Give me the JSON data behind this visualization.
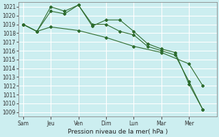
{
  "xlabel": "Pression niveau de la mer( hPa )",
  "bg_color": "#cceef0",
  "grid_color": "#ffffff",
  "line_color": "#2d6b2d",
  "ylim": [
    1008.5,
    1021.5
  ],
  "yticks": [
    1009,
    1010,
    1011,
    1012,
    1013,
    1014,
    1015,
    1016,
    1017,
    1018,
    1019,
    1020,
    1021
  ],
  "day_labels": [
    "Sam",
    "Jeu",
    "Ven",
    "Dim",
    "Lun",
    "Mar",
    "Mer"
  ],
  "day_positions": [
    0,
    24,
    48,
    72,
    96,
    120,
    144
  ],
  "xlim": [
    -4,
    168
  ],
  "series1_x": [
    0,
    12,
    24,
    36,
    48,
    60,
    72,
    84,
    96,
    108,
    120,
    132,
    144,
    156
  ],
  "series1_y": [
    1019.0,
    1018.2,
    1020.5,
    1020.2,
    1021.2,
    1018.8,
    1019.5,
    1019.5,
    1018.2,
    1016.8,
    1016.2,
    1015.8,
    1012.2,
    1009.3
  ],
  "series2_x": [
    0,
    12,
    24,
    36,
    48,
    60,
    72,
    84,
    96,
    108,
    120,
    132,
    144,
    156
  ],
  "series2_y": [
    1019.0,
    1018.2,
    1021.0,
    1020.5,
    1021.2,
    1019.0,
    1019.0,
    1018.2,
    1017.8,
    1016.5,
    1016.0,
    1015.5,
    1012.5,
    1009.3
  ],
  "series3_x": [
    0,
    12,
    24,
    48,
    72,
    96,
    120,
    144,
    156
  ],
  "series3_y": [
    1019.0,
    1018.2,
    1018.7,
    1018.3,
    1017.5,
    1016.5,
    1015.8,
    1014.5,
    1012.0
  ],
  "tick_fontsize": 5.5,
  "xlabel_fontsize": 6.5
}
